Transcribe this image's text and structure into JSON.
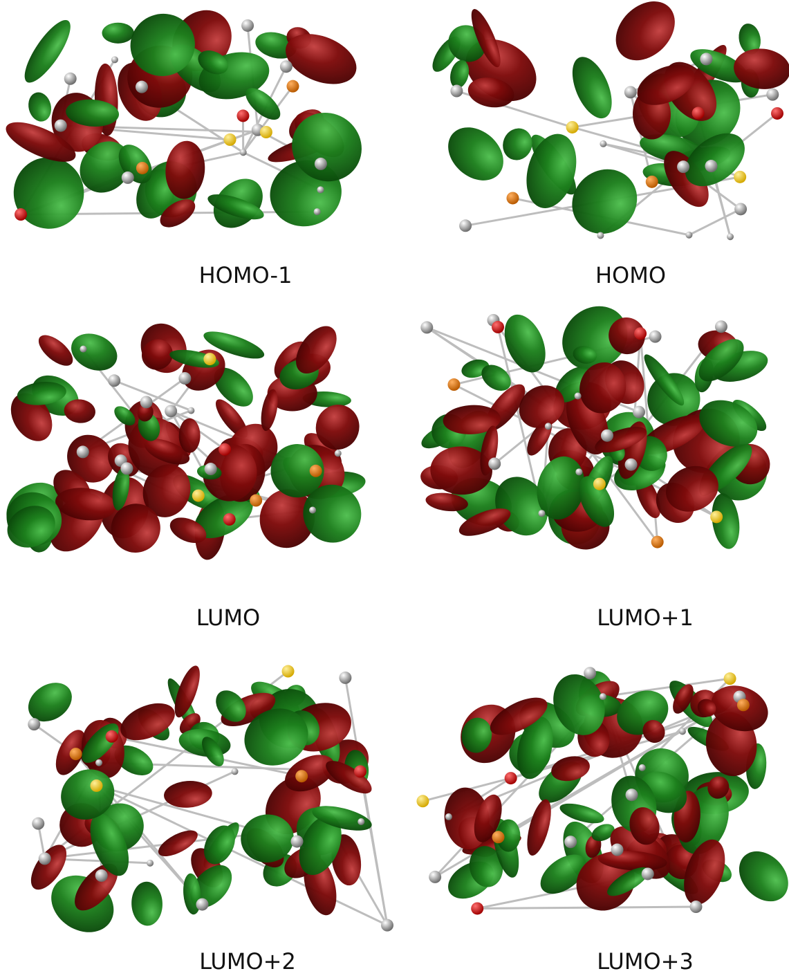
{
  "panels": [
    {
      "label": "HOMO-1"
    },
    {
      "label": "HOMO"
    },
    {
      "label": "LUMO"
    },
    {
      "label": "LUMO+1"
    },
    {
      "label": "LUMO+2"
    },
    {
      "label": "LUMO+3"
    }
  ]
}
